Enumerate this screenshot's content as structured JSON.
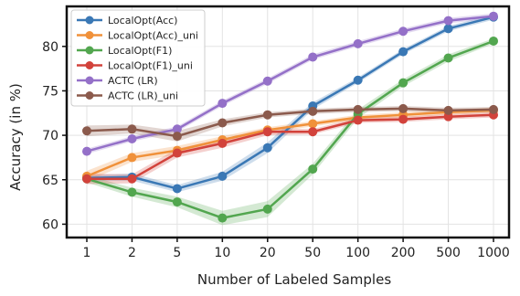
{
  "chart_data": {
    "type": "line",
    "title": "",
    "xlabel": "Number of Labeled Samples",
    "ylabel": "Accuracy (in %)",
    "categories": [
      "1",
      "2",
      "5",
      "10",
      "20",
      "50",
      "100",
      "200",
      "500",
      "1000"
    ],
    "ylim": [
      58.5,
      84.5
    ],
    "yticks": [
      60,
      65,
      70,
      75,
      80
    ],
    "grid": true,
    "legend_position": "top-left",
    "series": [
      {
        "name": "LocalOpt(Acc)",
        "color": "#3a78b5",
        "values": [
          65.2,
          65.3,
          64.0,
          65.4,
          68.6,
          73.3,
          76.2,
          79.4,
          82.0,
          83.3
        ],
        "band": [
          0.3,
          0.4,
          0.4,
          0.5,
          0.6,
          0.4,
          0.3,
          0.3,
          0.3,
          0.3
        ]
      },
      {
        "name": "LocalOpt(Acc)_uni",
        "color": "#f0913a",
        "values": [
          65.4,
          67.5,
          68.3,
          69.5,
          70.6,
          71.3,
          72.0,
          72.3,
          72.6,
          72.8
        ],
        "band": [
          0.6,
          0.5,
          0.5,
          0.4,
          0.3,
          0.3,
          0.3,
          0.3,
          0.3,
          0.3
        ]
      },
      {
        "name": "LocalOpt(F1)",
        "color": "#52a64f",
        "values": [
          65.1,
          63.6,
          62.5,
          60.7,
          61.7,
          66.2,
          72.4,
          75.9,
          78.7,
          80.6
        ],
        "band": [
          0.4,
          0.5,
          0.6,
          0.8,
          0.9,
          0.6,
          0.5,
          0.4,
          0.4,
          0.3
        ]
      },
      {
        "name": "LocalOpt(F1)_uni",
        "color": "#d2423b",
        "values": [
          65.1,
          65.1,
          68.0,
          69.1,
          70.4,
          70.4,
          71.7,
          71.8,
          72.1,
          72.3
        ],
        "band": [
          0.6,
          0.5,
          0.5,
          0.5,
          0.4,
          0.3,
          0.3,
          0.3,
          0.3,
          0.3
        ]
      },
      {
        "name": "ACTC (LR)",
        "color": "#9470c8",
        "values": [
          68.2,
          69.6,
          70.7,
          73.6,
          76.1,
          78.8,
          80.3,
          81.7,
          82.9,
          83.4
        ],
        "band": [
          0.3,
          0.3,
          0.3,
          0.3,
          0.3,
          0.3,
          0.3,
          0.3,
          0.3,
          0.3
        ]
      },
      {
        "name": "ACTC (LR)_uni",
        "color": "#8b5a4c",
        "values": [
          70.5,
          70.7,
          69.9,
          71.4,
          72.3,
          72.7,
          72.9,
          73.0,
          72.8,
          72.9
        ],
        "band": [
          0.6,
          0.5,
          0.6,
          0.4,
          0.3,
          0.3,
          0.3,
          0.3,
          0.3,
          0.3
        ]
      }
    ]
  }
}
